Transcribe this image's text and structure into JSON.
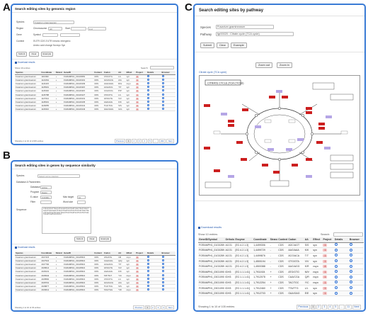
{
  "letters": {
    "a": "A",
    "b": "B",
    "c": "C"
  },
  "panel_a": {
    "title": "Search editing sites by genomic region",
    "species_label": "Species",
    "species_value": "Fusarium graminearum",
    "region_label": "Region",
    "chromosome_label": "Chromosome",
    "chromosome_value": "All",
    "start_label": "Start",
    "end_placeholder": "End",
    "gene_label": "Gene",
    "symbol_label": "Symbol",
    "context_label": "Context",
    "context_options": "5'UTR  CDS  3'UTR  Intronic  Intergenic",
    "context_options2": "Amino acid change  Nonsyn  Syn",
    "buttons": [
      "Submit",
      "Clear",
      "Example"
    ],
    "download": "Download results",
    "show_entries": "Show 10 entries",
    "search_label": "Search:",
    "columns": [
      "Species",
      "Coordinate",
      "Strand",
      "GeneID",
      "Context",
      "Codon",
      "AA",
      "Effect",
      "Project",
      "Details",
      "Browser"
    ],
    "rows": [
      [
        "Fusarium graminearum",
        "1116490",
        "+",
        "FGRAMPH1_01G00081",
        "CDS",
        "CTA/CTG",
        "L/L",
        "syn",
        "1"
      ],
      [
        "Fusarium graminearum",
        "1121664",
        "+",
        "FGRAMPH1_01G00101",
        "CDS",
        "GCA/GCG",
        "A/A",
        "syn",
        "1"
      ],
      [
        "Fusarium graminearum",
        "1124415",
        "-",
        "FGRAMPH1_01G00109",
        "CDS",
        "AGG/GGG",
        "R/G",
        "nsyn",
        "1"
      ],
      [
        "Fusarium graminearum",
        "1125901",
        "+",
        "FGRAMPH1_01G00115",
        "CDS",
        "ACA/ACG",
        "T/T",
        "syn",
        "1"
      ],
      [
        "Fusarium graminearum",
        "1126340",
        "+",
        "FGRAMPH1_01G00115",
        "CDS",
        "CCA/CCG",
        "P/P",
        "syn",
        "1"
      ],
      [
        "Fusarium graminearum",
        "1126788",
        "-",
        "FGRAMPH1_01G00127",
        "CDS",
        "CTA/CTG",
        "L/L",
        "syn",
        "1"
      ],
      [
        "Fusarium graminearum",
        "1127612",
        "+",
        "FGRAMPH1_01G00131",
        "CDS",
        "GTA/GTG",
        "V/V",
        "syn",
        "1"
      ],
      [
        "Fusarium graminearum",
        "1128301",
        "+",
        "FGRAMPH1_01G00135",
        "CDS",
        "AAA/AAG",
        "K/K",
        "syn",
        "1"
      ],
      [
        "Fusarium graminearum",
        "1129055",
        "-",
        "FGRAMPH1_01G00141",
        "CDS",
        "TCA/TCG",
        "S/S",
        "syn",
        "1"
      ],
      [
        "Fusarium graminearum",
        "1129310",
        "+",
        "FGRAMPH1_01G00143",
        "CDS",
        "GGA/GGG",
        "G/G",
        "syn",
        "1"
      ]
    ],
    "showing": "Showing 1 to 10 of 2,015 entries",
    "pager": [
      "Previous",
      "1",
      "2",
      "3",
      "4",
      "5",
      "...",
      "202",
      "Next"
    ]
  },
  "panel_b": {
    "title": "Search editing sites in genes by sequence similarity",
    "species_label": "Species",
    "species_value": "Select some species",
    "db_label": "Database & Parameters",
    "database_label": "Database",
    "database_value": "cDNA",
    "program_label": "Program",
    "program_value": "blastn",
    "evalue_label": "E-value",
    "evalue_value": "0.00001",
    "maxtarget_label": "Max target",
    "maxtarget_value": "10",
    "filter_label": "Filter",
    "wordsize_label": "Word size",
    "seq_label": "Sequence",
    "seq_text": "ATGCGTACGTTAGCCATGCAAGTCGATCGATCGGCTAGCTAGGCTAACGTTAGCAGGCTTAGCATCGATGCATGCATCGTAGCTAGCTAGCATCGATCGATGCTAGCTAGCATCGATCGATGCATGCATGCTAGCTACGATCGATGCATGCAT",
    "buttons": [
      "Submit",
      "Clear",
      "Example"
    ],
    "download": "Download results",
    "columns": [
      "Species",
      "Coordinate",
      "Strand",
      "GeneID",
      "Context",
      "Codon",
      "AA",
      "Effect",
      "Project",
      "Details",
      "Browser"
    ],
    "rows": [
      [
        "Fusarium graminearum",
        "2107415",
        "+",
        "FGRAMPH1_01G06521",
        "CDS",
        "ATA/ATG",
        "I/M",
        "nsyn",
        "1"
      ],
      [
        "Fusarium graminearum",
        "2107522",
        "+",
        "FGRAMPH1_01G06521",
        "CDS",
        "CAA/CAG",
        "Q/Q",
        "syn",
        "1"
      ],
      [
        "Fusarium graminearum",
        "2107790",
        "+",
        "FGRAMPH1_01G06521",
        "CDS",
        "ACA/ACG",
        "T/T",
        "syn",
        "1"
      ],
      [
        "Fusarium graminearum",
        "2108014",
        "+",
        "FGRAMPH1_01G06521",
        "CDS",
        "GTA/GTG",
        "V/V",
        "syn",
        "1"
      ],
      [
        "Fusarium graminearum",
        "2108131",
        "+",
        "FGRAMPH1_01G06521",
        "CDS",
        "AAA/AAG",
        "K/K",
        "syn",
        "1"
      ],
      [
        "Fusarium graminearum",
        "2108342",
        "+",
        "FGRAMPH1_01G06521",
        "CDS",
        "TAT/TGT",
        "Y/C",
        "nsyn",
        "1"
      ],
      [
        "Fusarium graminearum",
        "2108560",
        "+",
        "FGRAMPH1_01G06521",
        "CDS",
        "CTA/CTG",
        "L/L",
        "syn",
        "1"
      ],
      [
        "Fusarium graminearum",
        "2108701",
        "+",
        "FGRAMPH1_01G06521",
        "CDS",
        "GCA/GCG",
        "A/A",
        "syn",
        "1"
      ],
      [
        "Fusarium graminearum",
        "2108877",
        "+",
        "FGRAMPH1_01G06521",
        "CDS",
        "TCA/TCG",
        "S/S",
        "syn",
        "1"
      ],
      [
        "Fusarium graminearum",
        "2109012",
        "+",
        "FGRAMPH1_01G06521",
        "CDS",
        "TAG/TGG",
        "*/W",
        "nsyn",
        "1"
      ]
    ],
    "showing": "Showing 1 to 10 of 33 entries",
    "pager": [
      "Previous",
      "1",
      "2",
      "3",
      "4",
      "Next"
    ]
  },
  "panel_c": {
    "title": "Search editing sites by pathway",
    "species_label": "Species",
    "species_value": "Fusarium graminearum",
    "pathway_label": "Pathway",
    "pathway_value": "fgr00020 : Citrate cycle (TCA cycle)",
    "buttons": [
      "Submit",
      "Clear",
      "Example"
    ],
    "zoom_out": "Zoom out",
    "zoom_in": "Zoom in",
    "map_caption": "Citrate cycle (TCA cycle)",
    "map_title": "CITRATE CYCLE (TCA CYCLE)",
    "download": "Download results",
    "show_entries": "Show 10 entries",
    "search_label": "Search:",
    "columns": [
      "GeneID/Symbol",
      "Ortholog",
      "Enzyme",
      "Coordinate",
      "Strand",
      "Context",
      "Codon",
      "AA",
      "Effect",
      "Project",
      "Details",
      "Browser"
    ],
    "rows": [
      [
        "FGRAMPH1_01G02897",
        "ACO1",
        "[EC:4.2.1.3]",
        "1,4499306",
        "-",
        "CDS",
        "AGC/AGT",
        "S/S",
        "syn",
        "1"
      ],
      [
        "FGRAMPH1_01G02897",
        "ACO1",
        "[EC:4.2.1.3]",
        "1,4499729",
        "-",
        "CDS",
        "AAG/AAA",
        "K/K",
        "syn",
        "1"
      ],
      [
        "FGRAMPH1_01G02897",
        "ACO1",
        "[EC:4.2.1.3]",
        "1,4499876",
        "-",
        "CDS",
        "ACG/ACA",
        "T/T",
        "syn",
        "1"
      ],
      [
        "FGRAMPH1_01G02897",
        "ACO1",
        "[EC:4.2.1.3]",
        "1,4500194",
        "-",
        "CDS",
        "GTG/GTA",
        "V/V",
        "syn",
        "1"
      ],
      [
        "FGRAMPH1_01G02897",
        "ACO1",
        "[EC:4.2.1.3]",
        "1,4500388",
        "-",
        "CDS",
        "AAG/AGG",
        "K/R",
        "nsyn",
        "4"
      ],
      [
        "FGRAMPH1_03G10901",
        "IDH3",
        "[EC:1.1.1.41]",
        "1,7911924",
        "+",
        "CDS",
        "ATG/GTG",
        "M/V",
        "nsyn",
        "1"
      ],
      [
        "FGRAMPH1_03G10901",
        "IDH3",
        "[EC:1.1.1.41]",
        "1,7912078",
        "+",
        "CDS",
        "CAA/CGA",
        "Q/R",
        "nsyn",
        "1"
      ],
      [
        "FGRAMPH1_03G10901",
        "IDH3",
        "[EC:1.1.1.41]",
        "1,7912254",
        "+",
        "CDS",
        "TAC/TGC",
        "Y/C",
        "nsyn",
        "1"
      ],
      [
        "FGRAMPH1_03G10901",
        "IDH3",
        "[EC:1.1.1.41]",
        "1,7912460",
        "+",
        "CDS",
        "TTA/TTG",
        "L/L",
        "syn",
        "1"
      ],
      [
        "FGRAMPH1_03G10901",
        "IDH3",
        "[EC:1.1.1.41]",
        "1,7912703",
        "+",
        "CDS",
        "GAA/GAG",
        "E/E",
        "syn",
        "1"
      ]
    ],
    "showing": "Showing 1 to 10 of 105 entries",
    "pager": [
      "Previous",
      "1",
      "2",
      "3",
      "4",
      "5",
      "...",
      "11",
      "Next"
    ]
  },
  "colors": {
    "panel_border": "#3a7bd5",
    "enzyme_red": "#cc1f1f",
    "enzyme_purple": "#b5a6e6",
    "project_badge": "#f3c2c2"
  }
}
